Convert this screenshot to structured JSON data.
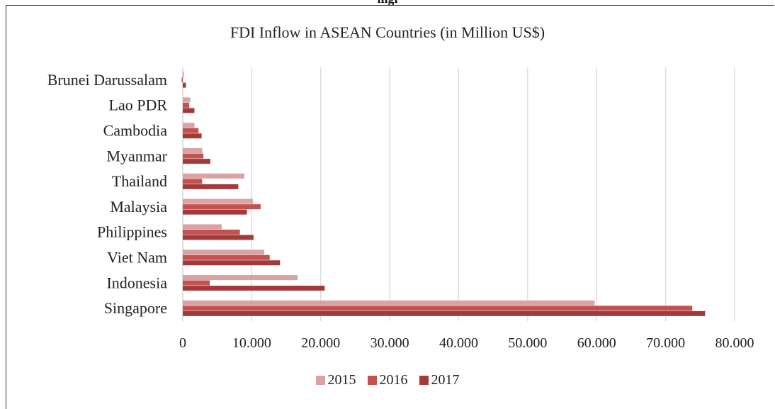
{
  "header_fragment": "ingl",
  "chart_data": {
    "type": "bar",
    "orientation": "horizontal",
    "title": "FDI Inflow in ASEAN Countries (in Million US$)",
    "categories": [
      "Brunei Darussalam",
      "Lao PDR",
      "Cambodia",
      "Myanmar",
      "Thailand",
      "Malaysia",
      "Philippines",
      "Viet Nam",
      "Indonesia",
      "Singapore"
    ],
    "series": [
      {
        "name": "2015",
        "color": "#d9a3a3",
        "values": [
          170,
          1080,
          1700,
          2820,
          8930,
          10180,
          5640,
          11800,
          16640,
          59700
        ]
      },
      {
        "name": "2016",
        "color": "#c55050",
        "values": [
          -150,
          940,
          2280,
          2990,
          2810,
          11290,
          8280,
          12600,
          3920,
          73860
        ]
      },
      {
        "name": "2017",
        "color": "#a33a3a",
        "values": [
          460,
          1690,
          2730,
          4000,
          8050,
          9300,
          10260,
          14100,
          20580,
          75720
        ]
      }
    ],
    "xlim": [
      0,
      80000
    ],
    "xticks": [
      "0",
      "10.000",
      "20.000",
      "30.000",
      "40.000",
      "50.000",
      "60.000",
      "70.000",
      "80.000"
    ],
    "xgrid": true,
    "legend_position": "bottom"
  }
}
